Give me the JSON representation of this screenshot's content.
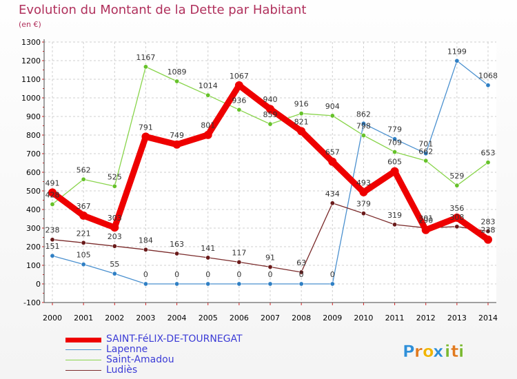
{
  "header": {
    "title": "Evolution du Montant de la Dette par Habitant",
    "subtitle": "(en €)"
  },
  "logo": {
    "letters": [
      "P",
      "r",
      "o",
      "x",
      "i",
      "t",
      "i"
    ],
    "colors": [
      "#2f8fd8",
      "#e07a1f",
      "#f0b400",
      "#2f8fd8",
      "#7ab830",
      "#e07a1f",
      "#7ab830"
    ]
  },
  "colors": {
    "title": "#b0305c",
    "axis_text": "#000000",
    "tick_red": "#d42020",
    "legend_text": "#3b3bd6",
    "grid": "#cccccc"
  },
  "chart_data": {
    "type": "line",
    "title": "Evolution du Montant de la Dette par Habitant",
    "subtitle": "(en €)",
    "xlabel": "",
    "ylabel": "",
    "x": [
      2000,
      2001,
      2002,
      2003,
      2004,
      2005,
      2006,
      2007,
      2008,
      2009,
      2010,
      2011,
      2012,
      2013,
      2014
    ],
    "ylim": [
      -100,
      1300
    ],
    "yticks": [
      -100,
      0,
      100,
      200,
      300,
      400,
      500,
      600,
      700,
      800,
      900,
      1000,
      1100,
      1200,
      1300
    ],
    "grid": true,
    "legend_position": "bottom-left",
    "series": [
      {
        "name": "SAINT-FéLIX-DE-TOURNEGAT",
        "color": "#ee0000",
        "bold": true,
        "values": [
          491,
          367,
          303,
          791,
          749,
          801,
          1067,
          940,
          821,
          657,
          493,
          605,
          290,
          356,
          238
        ],
        "labels": [
          "491",
          "367",
          "303",
          "791",
          "749",
          "801",
          "1067",
          "940",
          "821",
          "657",
          "493",
          "605",
          "290",
          "356",
          "238"
        ]
      },
      {
        "name": "Lapenne",
        "color": "#4a90cf",
        "marker": "#2f7fc4",
        "values": [
          151,
          105,
          55,
          0,
          0,
          0,
          0,
          0,
          0,
          0,
          862,
          779,
          701,
          1199,
          1068
        ],
        "labels": [
          "151",
          "105",
          "55",
          "0",
          "0",
          "0",
          "0",
          "0",
          "0",
          "0",
          "862",
          "779",
          "701",
          "1199",
          "1068"
        ]
      },
      {
        "name": "Saint-Amadou",
        "color": "#88d44a",
        "marker": "#66c22a",
        "values": [
          428,
          562,
          525,
          1167,
          1089,
          1014,
          936,
          859,
          916,
          904,
          798,
          709,
          662,
          529,
          653
        ],
        "labels": [
          "428",
          "562",
          "525",
          "1167",
          "1089",
          "1014",
          "936",
          "859",
          "916",
          "904",
          "798",
          "709",
          "662",
          "529",
          "653"
        ]
      },
      {
        "name": "Ludiès",
        "color": "#7a2a2a",
        "marker": "#6a1a1a",
        "values": [
          238,
          221,
          203,
          184,
          163,
          141,
          117,
          91,
          63,
          434,
          379,
          319,
          301,
          308,
          283
        ],
        "labels": [
          "238",
          "221",
          "203",
          "184",
          "163",
          "141",
          "117",
          "91",
          "63",
          "434",
          "379",
          "319",
          "301",
          "308",
          "283"
        ]
      }
    ]
  }
}
